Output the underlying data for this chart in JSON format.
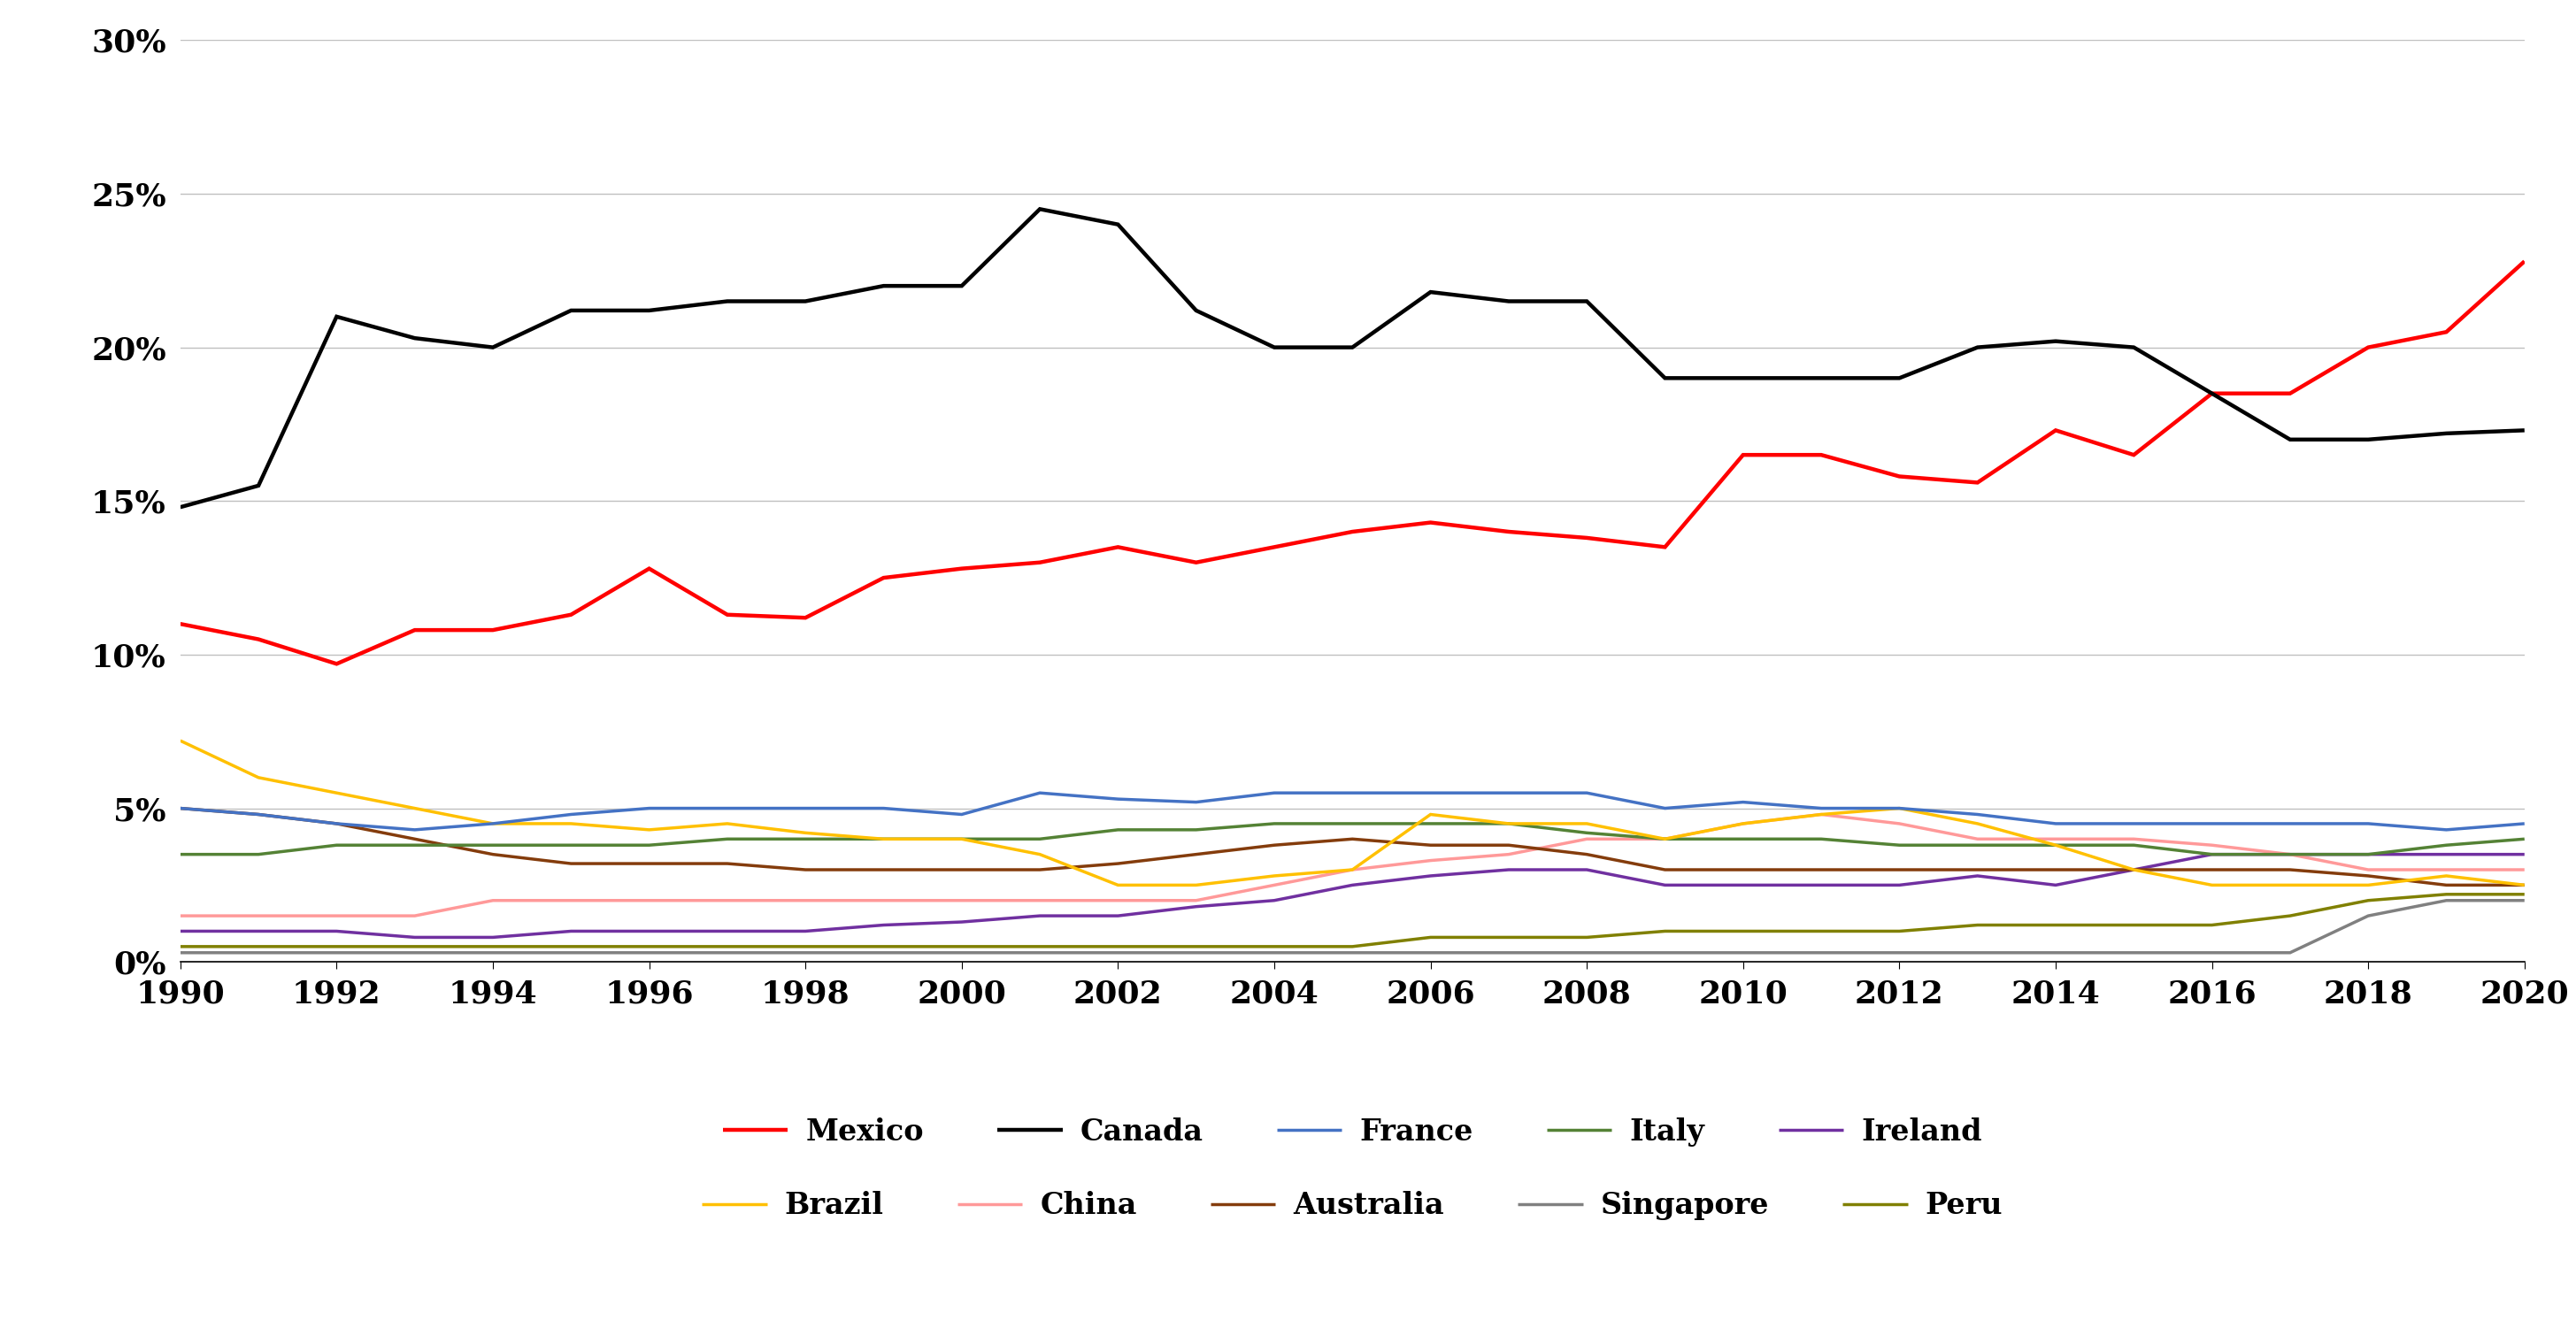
{
  "years": [
    1990,
    1991,
    1992,
    1993,
    1994,
    1995,
    1996,
    1997,
    1998,
    1999,
    2000,
    2001,
    2002,
    2003,
    2004,
    2005,
    2006,
    2007,
    2008,
    2009,
    2010,
    2011,
    2012,
    2013,
    2014,
    2015,
    2016,
    2017,
    2018,
    2019,
    2020
  ],
  "series": {
    "Mexico": {
      "color": "#FF0000",
      "linewidth": 3.2,
      "values": [
        11.0,
        10.5,
        9.7,
        10.8,
        10.8,
        11.3,
        12.8,
        11.3,
        11.2,
        12.5,
        12.8,
        13.0,
        13.5,
        13.0,
        13.5,
        14.0,
        14.3,
        14.0,
        13.8,
        13.5,
        16.5,
        16.5,
        15.8,
        15.6,
        17.3,
        16.5,
        18.5,
        18.5,
        20.0,
        20.5,
        22.8
      ]
    },
    "Canada": {
      "color": "#000000",
      "linewidth": 3.2,
      "values": [
        14.8,
        15.5,
        21.0,
        20.3,
        20.0,
        21.2,
        21.2,
        21.5,
        21.5,
        22.0,
        22.0,
        24.5,
        24.0,
        21.2,
        20.0,
        20.0,
        21.8,
        21.5,
        21.5,
        19.0,
        19.0,
        19.0,
        19.0,
        20.0,
        20.2,
        20.0,
        18.5,
        17.0,
        17.0,
        17.2,
        17.3
      ]
    },
    "France": {
      "color": "#4472C4",
      "linewidth": 2.5,
      "values": [
        5.0,
        4.8,
        4.5,
        4.3,
        4.5,
        4.8,
        5.0,
        5.0,
        5.0,
        5.0,
        4.8,
        5.5,
        5.3,
        5.2,
        5.5,
        5.5,
        5.5,
        5.5,
        5.5,
        5.0,
        5.2,
        5.0,
        5.0,
        4.8,
        4.5,
        4.5,
        4.5,
        4.5,
        4.5,
        4.3,
        4.5
      ]
    },
    "Italy": {
      "color": "#548235",
      "linewidth": 2.5,
      "values": [
        3.5,
        3.5,
        3.8,
        3.8,
        3.8,
        3.8,
        3.8,
        4.0,
        4.0,
        4.0,
        4.0,
        4.0,
        4.3,
        4.3,
        4.5,
        4.5,
        4.5,
        4.5,
        4.2,
        4.0,
        4.0,
        4.0,
        3.8,
        3.8,
        3.8,
        3.8,
        3.5,
        3.5,
        3.5,
        3.8,
        4.0
      ]
    },
    "Ireland": {
      "color": "#7030A0",
      "linewidth": 2.5,
      "values": [
        1.0,
        1.0,
        1.0,
        0.8,
        0.8,
        1.0,
        1.0,
        1.0,
        1.0,
        1.2,
        1.3,
        1.5,
        1.5,
        1.8,
        2.0,
        2.5,
        2.8,
        3.0,
        3.0,
        2.5,
        2.5,
        2.5,
        2.5,
        2.8,
        2.5,
        3.0,
        3.5,
        3.5,
        3.5,
        3.5,
        3.5
      ]
    },
    "Brazil": {
      "color": "#FFC000",
      "linewidth": 2.5,
      "values": [
        7.2,
        6.0,
        5.5,
        5.0,
        4.5,
        4.5,
        4.3,
        4.5,
        4.2,
        4.0,
        4.0,
        3.5,
        2.5,
        2.5,
        2.8,
        3.0,
        4.8,
        4.5,
        4.5,
        4.0,
        4.5,
        4.8,
        5.0,
        4.5,
        3.8,
        3.0,
        2.5,
        2.5,
        2.5,
        2.8,
        2.5
      ]
    },
    "China": {
      "color": "#FF9999",
      "linewidth": 2.5,
      "values": [
        1.5,
        1.5,
        1.5,
        1.5,
        2.0,
        2.0,
        2.0,
        2.0,
        2.0,
        2.0,
        2.0,
        2.0,
        2.0,
        2.0,
        2.5,
        3.0,
        3.3,
        3.5,
        4.0,
        4.0,
        4.5,
        4.8,
        4.5,
        4.0,
        4.0,
        4.0,
        3.8,
        3.5,
        3.0,
        3.0,
        3.0
      ]
    },
    "Australia": {
      "color": "#843C0C",
      "linewidth": 2.5,
      "values": [
        5.0,
        4.8,
        4.5,
        4.0,
        3.5,
        3.2,
        3.2,
        3.2,
        3.0,
        3.0,
        3.0,
        3.0,
        3.2,
        3.5,
        3.8,
        4.0,
        3.8,
        3.8,
        3.5,
        3.0,
        3.0,
        3.0,
        3.0,
        3.0,
        3.0,
        3.0,
        3.0,
        3.0,
        2.8,
        2.5,
        2.5
      ]
    },
    "Singapore": {
      "color": "#808080",
      "linewidth": 2.5,
      "values": [
        0.3,
        0.3,
        0.3,
        0.3,
        0.3,
        0.3,
        0.3,
        0.3,
        0.3,
        0.3,
        0.3,
        0.3,
        0.3,
        0.3,
        0.3,
        0.3,
        0.3,
        0.3,
        0.3,
        0.3,
        0.3,
        0.3,
        0.3,
        0.3,
        0.3,
        0.3,
        0.3,
        0.3,
        1.5,
        2.0,
        2.0
      ]
    },
    "Peru": {
      "color": "#808000",
      "linewidth": 2.5,
      "values": [
        0.5,
        0.5,
        0.5,
        0.5,
        0.5,
        0.5,
        0.5,
        0.5,
        0.5,
        0.5,
        0.5,
        0.5,
        0.5,
        0.5,
        0.5,
        0.5,
        0.8,
        0.8,
        0.8,
        1.0,
        1.0,
        1.0,
        1.0,
        1.2,
        1.2,
        1.2,
        1.2,
        1.5,
        2.0,
        2.2,
        2.2
      ]
    }
  },
  "yticks": [
    0,
    5,
    10,
    15,
    20,
    25,
    30
  ],
  "xticks": [
    1990,
    1992,
    1994,
    1996,
    1998,
    2000,
    2002,
    2004,
    2006,
    2008,
    2010,
    2012,
    2014,
    2016,
    2018,
    2020
  ],
  "ylim": [
    0,
    30
  ],
  "xlim": [
    1990,
    2020
  ],
  "background_color": "#FFFFFF",
  "grid_color": "#C0C0C0",
  "tick_fontsize": 26,
  "legend_fontsize": 24,
  "legend_row1": [
    "Mexico",
    "Canada",
    "France",
    "Italy",
    "Ireland"
  ],
  "legend_row2": [
    "Brazil",
    "China",
    "Australia",
    "Singapore",
    "Peru"
  ]
}
